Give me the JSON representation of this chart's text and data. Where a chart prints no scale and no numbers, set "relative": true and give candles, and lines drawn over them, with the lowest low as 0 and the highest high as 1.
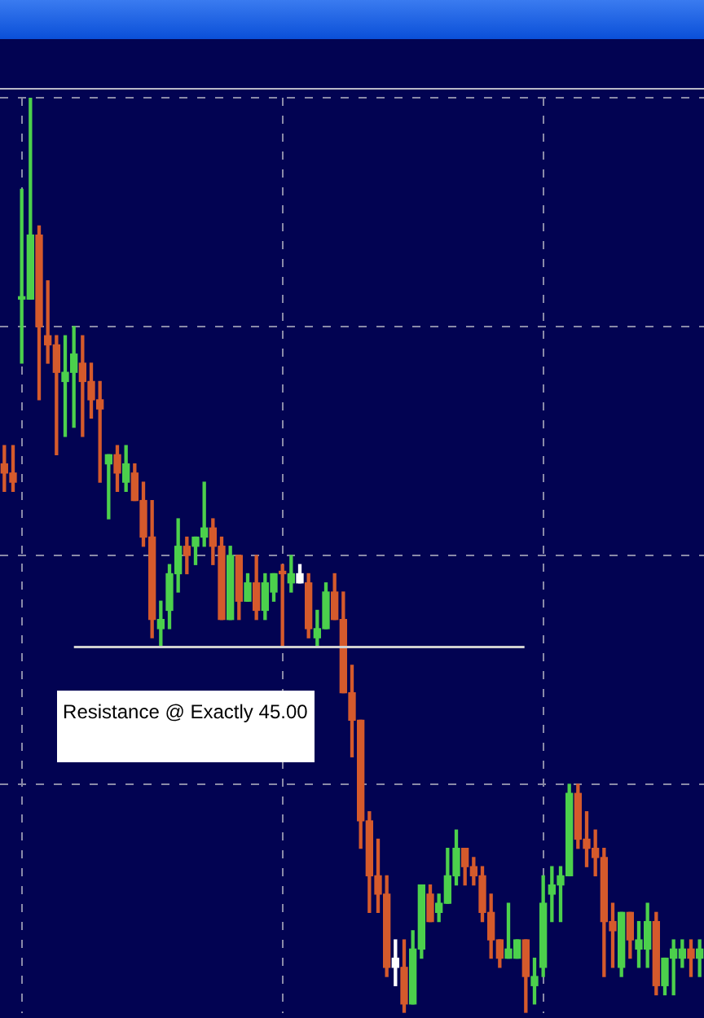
{
  "chart_data": {
    "type": "candlestick",
    "relative": true,
    "grid": true,
    "categories": [
      null,
      null,
      null,
      null,
      null,
      null,
      null,
      null,
      null,
      null,
      null,
      null,
      null,
      null,
      null,
      null,
      null,
      null,
      null,
      null,
      null,
      null,
      null,
      null,
      null,
      null,
      null,
      null,
      null,
      null,
      null,
      null,
      null,
      null,
      null,
      null,
      null,
      null,
      null,
      null,
      null,
      null,
      null,
      null,
      null,
      null,
      null,
      null,
      null,
      null,
      null,
      null,
      null,
      null,
      null,
      null,
      null,
      null,
      null,
      null,
      null,
      null,
      null,
      null,
      null,
      null,
      null,
      null,
      null,
      null,
      null,
      null,
      null,
      null,
      null,
      null,
      null,
      null,
      null,
      null,
      null
    ],
    "ohlc": [
      [
        0.6,
        0.62,
        0.57,
        0.59
      ],
      [
        0.59,
        0.62,
        0.57,
        0.58
      ],
      [
        0.78,
        0.9,
        0.71,
        0.78
      ],
      [
        0.78,
        1,
        0.78,
        0.85
      ],
      [
        0.85,
        0.86,
        0.67,
        0.75
      ],
      [
        0.74,
        0.8,
        0.71,
        0.73
      ],
      [
        0.73,
        0.74,
        0.61,
        0.7
      ],
      [
        0.69,
        0.74,
        0.63,
        0.7
      ],
      [
        0.7,
        0.75,
        0.64,
        0.72
      ],
      [
        0.71,
        0.74,
        0.63,
        0.69
      ],
      [
        0.69,
        0.71,
        0.65,
        0.67
      ],
      [
        0.67,
        0.69,
        0.58,
        0.66
      ],
      [
        0.6,
        0.61,
        0.54,
        0.61
      ],
      [
        0.61,
        0.62,
        0.57,
        0.59
      ],
      [
        0.58,
        0.62,
        0.57,
        0.6
      ],
      [
        0.59,
        0.6,
        0.56,
        0.56
      ],
      [
        0.56,
        0.58,
        0.51,
        0.52
      ],
      [
        0.52,
        0.56,
        0.41,
        0.43
      ],
      [
        0.42,
        0.45,
        0.4,
        0.43
      ],
      [
        0.44,
        0.49,
        0.42,
        0.48
      ],
      [
        0.48,
        0.54,
        0.46,
        0.51
      ],
      [
        0.51,
        0.52,
        0.48,
        0.5
      ],
      [
        0.51,
        0.52,
        0.49,
        0.52
      ],
      [
        0.52,
        0.58,
        0.51,
        0.53
      ],
      [
        0.53,
        0.54,
        0.49,
        0.51
      ],
      [
        0.51,
        0.52,
        0.43,
        0.43
      ],
      [
        0.43,
        0.51,
        0.43,
        0.5
      ],
      [
        0.5,
        0.5,
        0.43,
        0.45
      ],
      [
        0.45,
        0.48,
        0.45,
        0.47
      ],
      [
        0.47,
        0.5,
        0.43,
        0.44
      ],
      [
        0.44,
        0.48,
        0.43,
        0.47
      ],
      [
        0.46,
        0.48,
        0.45,
        0.48
      ],
      [
        0.48,
        0.49,
        0.4,
        0.48
      ],
      [
        0.47,
        0.5,
        0.46,
        0.48
      ],
      [
        0.48,
        0.49,
        0.47,
        0.47
      ],
      [
        0.47,
        0.48,
        0.41,
        0.42
      ],
      [
        0.41,
        0.44,
        0.4,
        0.42
      ],
      [
        0.42,
        0.47,
        0.42,
        0.46
      ],
      [
        0.46,
        0.48,
        0.43,
        0.43
      ],
      [
        0.43,
        0.46,
        0.35,
        0.35
      ],
      [
        0.35,
        0.38,
        0.28,
        0.32
      ],
      [
        0.32,
        0.32,
        0.18,
        0.21
      ],
      [
        0.21,
        0.22,
        0.11,
        0.15
      ],
      [
        0.15,
        0.19,
        0.11,
        0.13
      ],
      [
        0.13,
        0.15,
        0.04,
        0.05
      ],
      [
        0.05,
        0.08,
        0.03,
        0.06
      ],
      [
        0.05,
        0.08,
        0,
        0.01
      ],
      [
        0.01,
        0.09,
        0.01,
        0.07
      ],
      [
        0.07,
        0.14,
        0.06,
        0.14
      ],
      [
        0.13,
        0.14,
        0.1,
        0.1
      ],
      [
        0.11,
        0.13,
        0.1,
        0.12
      ],
      [
        0.12,
        0.18,
        0.12,
        0.15
      ],
      [
        0.15,
        0.2,
        0.14,
        0.18
      ],
      [
        0.18,
        0.18,
        0.14,
        0.16
      ],
      [
        0.16,
        0.17,
        0.14,
        0.15
      ],
      [
        0.15,
        0.16,
        0.1,
        0.11
      ],
      [
        0.11,
        0.13,
        0.06,
        0.08
      ],
      [
        0.08,
        0.08,
        0.05,
        0.06
      ],
      [
        0.06,
        0.12,
        0.06,
        0.07
      ],
      [
        0.06,
        0.08,
        0.06,
        0.08
      ],
      [
        0.08,
        0.08,
        0,
        0.04
      ],
      [
        0.03,
        0.06,
        0.01,
        0.04
      ],
      [
        0.05,
        0.15,
        0.04,
        0.12
      ],
      [
        0.13,
        0.16,
        0.1,
        0.14
      ],
      [
        0.14,
        0.16,
        0.1,
        0.15
      ],
      [
        0.15,
        0.25,
        0.15,
        0.24
      ],
      [
        0.24,
        0.25,
        0.18,
        0.19
      ],
      [
        0.19,
        0.22,
        0.16,
        0.18
      ],
      [
        0.18,
        0.2,
        0.15,
        0.17
      ],
      [
        0.17,
        0.18,
        0.04,
        0.1
      ],
      [
        0.1,
        0.12,
        0.05,
        0.09
      ],
      [
        0.05,
        0.11,
        0.04,
        0.11
      ],
      [
        0.11,
        0.11,
        0.06,
        0.08
      ],
      [
        0.07,
        0.1,
        0.05,
        0.08
      ],
      [
        0.07,
        0.12,
        0.05,
        0.1
      ],
      [
        0.1,
        0.11,
        0.02,
        0.03
      ],
      [
        0.03,
        0.06,
        0.02,
        0.06
      ],
      [
        0.06,
        0.08,
        0.02,
        0.07
      ],
      [
        0.06,
        0.08,
        0.05,
        0.07
      ],
      [
        0.07,
        0.08,
        0.04,
        0.06
      ],
      [
        0.06,
        0.08,
        0.04,
        0.07
      ]
    ],
    "colors": [
      "#d55a2c",
      "#d55a2c",
      "#4cd04c",
      "#4cd04c",
      "#d55a2c",
      "#d55a2c",
      "#d55a2c",
      "#4cd04c",
      "#4cd04c",
      "#d55a2c",
      "#d55a2c",
      "#d55a2c",
      "#4cd04c",
      "#d55a2c",
      "#4cd04c",
      "#d55a2c",
      "#d55a2c",
      "#d55a2c",
      "#4cd04c",
      "#4cd04c",
      "#4cd04c",
      "#d55a2c",
      "#4cd04c",
      "#4cd04c",
      "#d55a2c",
      "#d55a2c",
      "#4cd04c",
      "#d55a2c",
      "#4cd04c",
      "#d55a2c",
      "#4cd04c",
      "#4cd04c",
      "#d55a2c",
      "#4cd04c",
      "#ffffff",
      "#d55a2c",
      "#4cd04c",
      "#4cd04c",
      "#d55a2c",
      "#d55a2c",
      "#d55a2c",
      "#d55a2c",
      "#d55a2c",
      "#d55a2c",
      "#d55a2c",
      "#ffffff",
      "#d55a2c",
      "#4cd04c",
      "#4cd04c",
      "#d55a2c",
      "#4cd04c",
      "#4cd04c",
      "#4cd04c",
      "#d55a2c",
      "#d55a2c",
      "#d55a2c",
      "#d55a2c",
      "#d55a2c",
      "#4cd04c",
      "#4cd04c",
      "#d55a2c",
      "#4cd04c",
      "#4cd04c",
      "#4cd04c",
      "#4cd04c",
      "#4cd04c",
      "#d55a2c",
      "#d55a2c",
      "#d55a2c",
      "#d55a2c",
      "#d55a2c",
      "#4cd04c",
      "#d55a2c",
      "#4cd04c",
      "#4cd04c",
      "#d55a2c",
      "#4cd04c",
      "#4cd04c",
      "#4cd04c",
      "#d55a2c",
      "#4cd04c"
    ],
    "ref_lines": [
      {
        "axis": "y",
        "value": 0.4,
        "label": "Resistance @ Exactly 45.00",
        "color": "#d0d0d0"
      }
    ]
  }
}
